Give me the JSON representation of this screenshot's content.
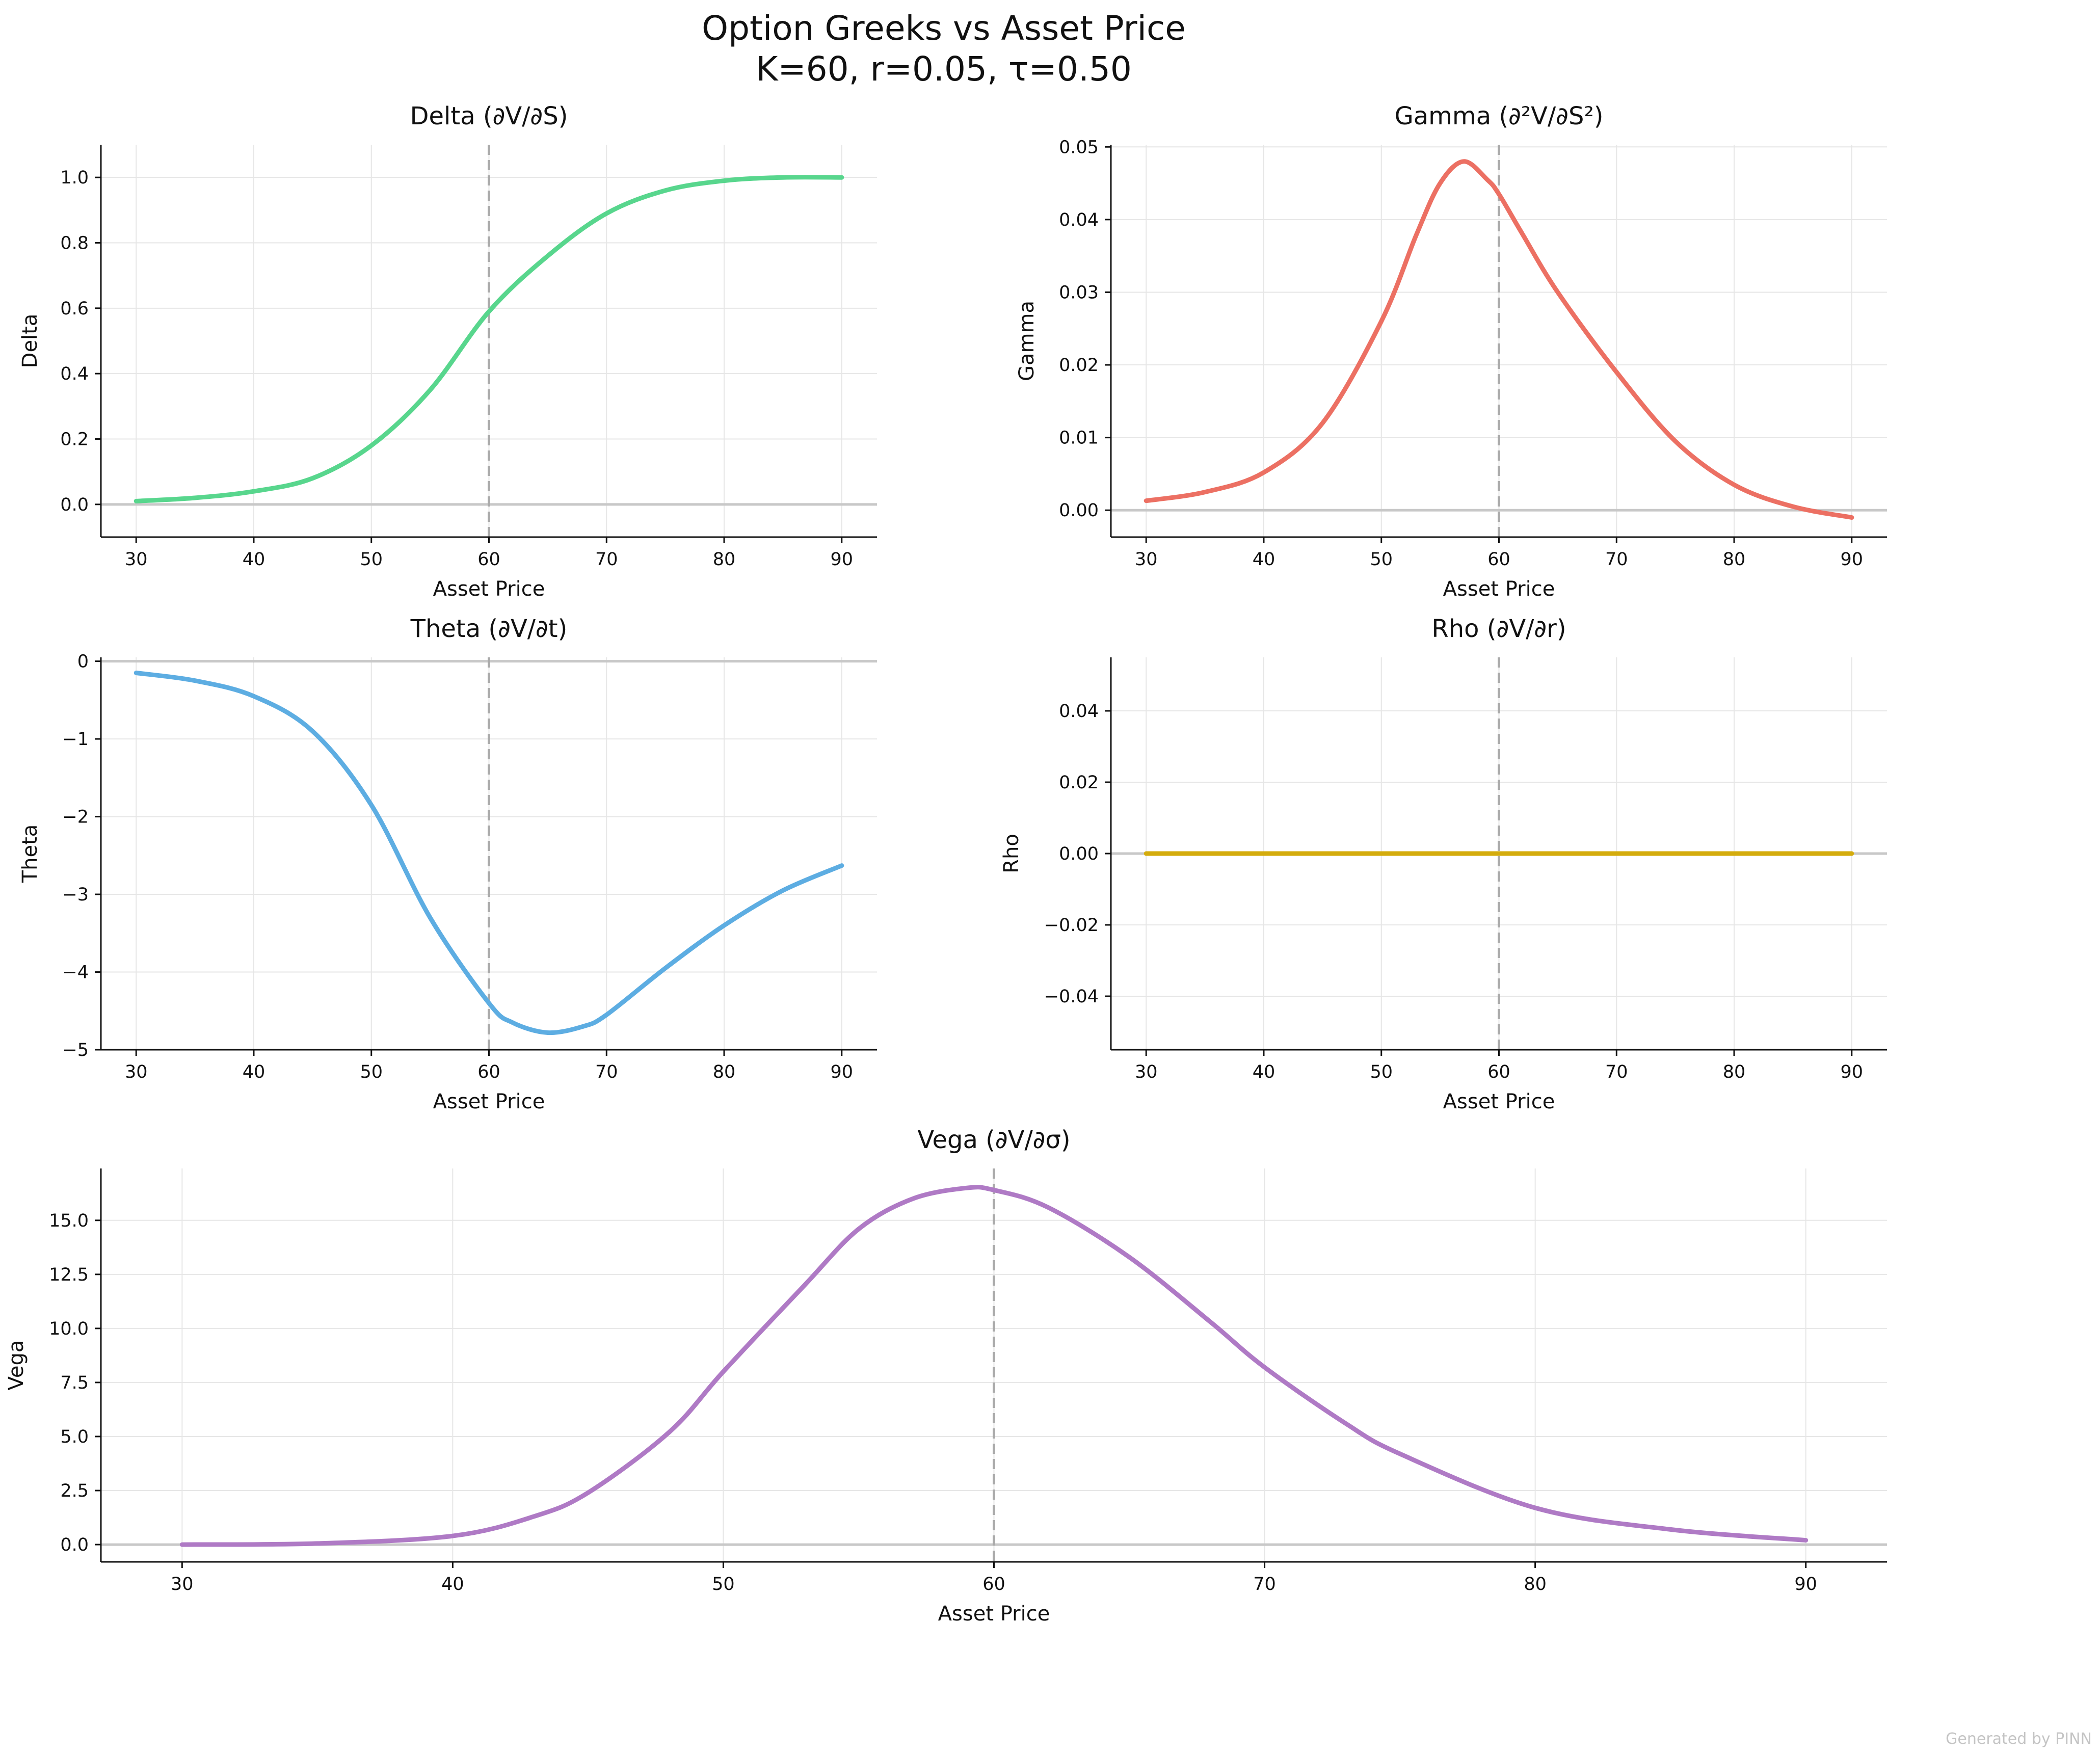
{
  "figure": {
    "title_line1": "Option Greeks vs Asset Price",
    "title_line2": "K=60, r=0.05, τ=0.50",
    "footer": "Generated by PINN"
  },
  "styles": {
    "grid_color": "#e6e6e6",
    "zero_line_color": "#c8c8c8",
    "strike_line_color": "#aaaaaa",
    "axis_color": "#111111"
  },
  "chart_data": [
    {
      "type": "line",
      "title": "Delta (∂V/∂S)",
      "xlabel": "Asset Price",
      "ylabel": "Delta",
      "xlim": [
        27,
        93
      ],
      "ylim": [
        -0.1,
        1.1
      ],
      "xticks": [
        30,
        40,
        50,
        60,
        70,
        80,
        90
      ],
      "xtick_labels": [
        "30",
        "40",
        "50",
        "60",
        "70",
        "80",
        "90"
      ],
      "yticks": [
        0,
        0.2,
        0.4,
        0.6,
        0.8,
        1.0
      ],
      "ytick_labels": [
        "0.0",
        "0.2",
        "0.4",
        "0.6",
        "0.8",
        "1.0"
      ],
      "strike": 60,
      "grid": true,
      "color": "#58d68d",
      "x": [
        30,
        35,
        40,
        45,
        50,
        55,
        60,
        65,
        70,
        75,
        80,
        85,
        90
      ],
      "y": [
        0.01,
        0.02,
        0.04,
        0.08,
        0.18,
        0.35,
        0.59,
        0.76,
        0.89,
        0.96,
        0.99,
        1.0,
        1.0
      ]
    },
    {
      "type": "line",
      "title": "Gamma (∂²V/∂S²)",
      "xlabel": "Asset Price",
      "ylabel": "Gamma",
      "xlim": [
        27,
        93
      ],
      "ylim": [
        -0.0037,
        0.0503
      ],
      "xticks": [
        30,
        40,
        50,
        60,
        70,
        80,
        90
      ],
      "xtick_labels": [
        "30",
        "40",
        "50",
        "60",
        "70",
        "80",
        "90"
      ],
      "yticks": [
        0,
        0.01,
        0.02,
        0.03,
        0.04,
        0.05
      ],
      "ytick_labels": [
        "0.00",
        "0.01",
        "0.02",
        "0.03",
        "0.04",
        "0.05"
      ],
      "strike": 60,
      "grid": true,
      "color": "#ec7063",
      "x": [
        30,
        35,
        40,
        45,
        50,
        53,
        55,
        57,
        59,
        60,
        62,
        65,
        70,
        75,
        80,
        85,
        90
      ],
      "y": [
        0.0013,
        0.0025,
        0.0052,
        0.012,
        0.026,
        0.038,
        0.045,
        0.048,
        0.0455,
        0.0435,
        0.038,
        0.03,
        0.019,
        0.0095,
        0.0035,
        0.0005,
        -0.001
      ]
    },
    {
      "type": "line",
      "title": "Theta (∂V/∂t)",
      "xlabel": "Asset Price",
      "ylabel": "Theta",
      "xlim": [
        27,
        93
      ],
      "ylim": [
        -5.0,
        0.05
      ],
      "xticks": [
        30,
        40,
        50,
        60,
        70,
        80,
        90
      ],
      "xtick_labels": [
        "30",
        "40",
        "50",
        "60",
        "70",
        "80",
        "90"
      ],
      "yticks": [
        0,
        -1,
        -2,
        -3,
        -4,
        -5
      ],
      "ytick_labels": [
        "0",
        "−1",
        "−2",
        "−3",
        "−4",
        "−5"
      ],
      "strike": 60,
      "grid": true,
      "color": "#5dade2",
      "x": [
        30,
        35,
        40,
        45,
        50,
        55,
        60,
        62,
        65,
        68,
        70,
        75,
        80,
        85,
        90
      ],
      "y": [
        -0.15,
        -0.25,
        -0.45,
        -0.9,
        -1.85,
        -3.3,
        -4.4,
        -4.65,
        -4.78,
        -4.7,
        -4.55,
        -3.95,
        -3.4,
        -2.95,
        -2.63
      ]
    },
    {
      "type": "line",
      "title": "Rho (∂V/∂r)",
      "xlabel": "Asset Price",
      "ylabel": "Rho",
      "xlim": [
        27,
        93
      ],
      "ylim": [
        -0.055,
        0.055
      ],
      "xticks": [
        30,
        40,
        50,
        60,
        70,
        80,
        90
      ],
      "xtick_labels": [
        "30",
        "40",
        "50",
        "60",
        "70",
        "80",
        "90"
      ],
      "yticks": [
        0.04,
        0.02,
        0,
        -0.02,
        -0.04
      ],
      "ytick_labels": [
        "0.04",
        "0.02",
        "0.00",
        "−0.02",
        "−0.04"
      ],
      "strike": 60,
      "grid": true,
      "color": "#d4ac0d",
      "x": [
        30,
        90
      ],
      "y": [
        0,
        0
      ]
    },
    {
      "type": "line",
      "title": "Vega (∂V/∂σ)",
      "xlabel": "Asset Price",
      "ylabel": "Vega",
      "xlim": [
        27,
        93
      ],
      "ylim": [
        -0.8,
        17.4
      ],
      "xticks": [
        30,
        40,
        50,
        60,
        70,
        80,
        90
      ],
      "xtick_labels": [
        "30",
        "40",
        "50",
        "60",
        "70",
        "80",
        "90"
      ],
      "yticks": [
        0,
        2.5,
        5,
        7.5,
        10,
        12.5,
        15
      ],
      "ytick_labels": [
        "0.0",
        "2.5",
        "5.0",
        "7.5",
        "10.0",
        "12.5",
        "15.0"
      ],
      "strike": 60,
      "grid": true,
      "color": "#af7ac5",
      "x": [
        30,
        35,
        40,
        43,
        45,
        48,
        50,
        53,
        55,
        57,
        59,
        60,
        62,
        65,
        68,
        70,
        73,
        75,
        80,
        85,
        90
      ],
      "y": [
        0,
        0.05,
        0.4,
        1.3,
        2.4,
        5.2,
        8.0,
        12.0,
        14.6,
        16.0,
        16.5,
        16.4,
        15.6,
        13.3,
        10.3,
        8.2,
        5.6,
        4.2,
        1.7,
        0.7,
        0.2
      ]
    }
  ]
}
